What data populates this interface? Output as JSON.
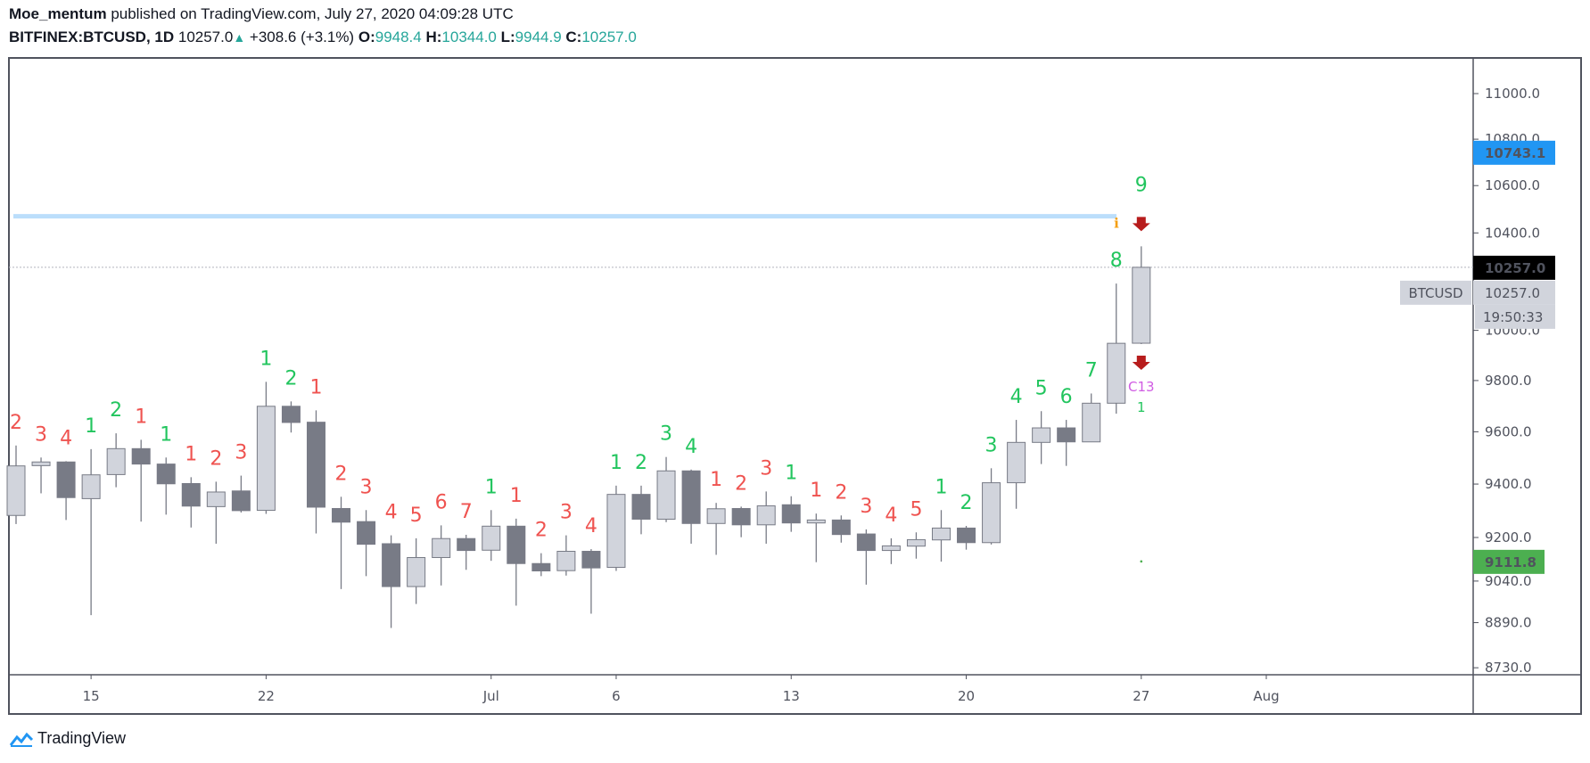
{
  "header": {
    "author": "Moe_mentum",
    "published": "published on TradingView.com, July 27, 2020 04:09:28 UTC",
    "symbol": "BITFINEX:BTCUSD, 1D",
    "last": "10257.0",
    "change": "+308.6 (+3.1%)",
    "o_label": "O:",
    "o_value": "9948.4",
    "h_label": "H:",
    "h_value": "10344.0",
    "l_label": "L:",
    "l_value": "9944.9",
    "c_label": "C:",
    "c_value": "10257.0"
  },
  "footer": {
    "logo_text": "TradingView"
  },
  "colors": {
    "up_fill": "#d1d4dc",
    "down_fill": "#787b86",
    "wick": "#787b86",
    "td_buy": "#22c55e",
    "td_sell": "#ef5350",
    "level_line": "#bbdefb",
    "accent_blue": "#2196f3",
    "green_badge": "#4caf50",
    "arrow": "#b71c1c",
    "countdown13": "#d05ce3",
    "info": "#f59e0b"
  },
  "chart_data": {
    "type": "candlestick",
    "title": "",
    "y_scale": "log",
    "ylim": [
      8680,
      11150
    ],
    "grid": false,
    "y_ticks": [
      "11000.0",
      "10800.0",
      "10600.0",
      "10400.0",
      "10000.0",
      "9800.0",
      "9600.0",
      "9400.0",
      "9200.0",
      "9040.0",
      "8890.0",
      "8730.0"
    ],
    "y_tick_values": [
      11000,
      10800,
      10600,
      10400,
      10000,
      9800,
      9600,
      9400,
      9200,
      9040,
      8890,
      8730
    ],
    "x_ticks": [
      {
        "label": "15",
        "date": "2020-06-15"
      },
      {
        "label": "22",
        "date": "2020-06-22"
      },
      {
        "label": "Jul",
        "date": "2020-07-01"
      },
      {
        "label": "6",
        "date": "2020-07-06"
      },
      {
        "label": "13",
        "date": "2020-07-13"
      },
      {
        "label": "20",
        "date": "2020-07-20"
      },
      {
        "label": "27",
        "date": "2020-07-27"
      },
      {
        "label": "Aug",
        "date": "2020-08-01"
      }
    ],
    "first_date": "2020-06-12",
    "candles": [
      {
        "o": 9282,
        "h": 9547,
        "l": 9250,
        "c": 9469,
        "td": "2",
        "td_side": "sell"
      },
      {
        "o": 9470,
        "h": 9501,
        "l": 9365,
        "c": 9484,
        "td": "3",
        "td_side": "sell"
      },
      {
        "o": 9484,
        "h": 9487,
        "l": 9265,
        "c": 9349,
        "td": "4",
        "td_side": "sell"
      },
      {
        "o": 9345,
        "h": 9533,
        "l": 8917,
        "c": 9435,
        "td": "1",
        "td_side": "buy"
      },
      {
        "o": 9436,
        "h": 9594,
        "l": 9388,
        "c": 9535,
        "td": "2",
        "td_side": "buy"
      },
      {
        "o": 9535,
        "h": 9569,
        "l": 9259,
        "c": 9476,
        "td": "1",
        "td_side": "sell"
      },
      {
        "o": 9476,
        "h": 9501,
        "l": 9285,
        "c": 9401,
        "td": "1",
        "td_side": "buy"
      },
      {
        "o": 9402,
        "h": 9426,
        "l": 9237,
        "c": 9317,
        "td": "1",
        "td_side": "sell"
      },
      {
        "o": 9315,
        "h": 9409,
        "l": 9177,
        "c": 9370,
        "td": "2",
        "td_side": "sell"
      },
      {
        "o": 9374,
        "h": 9432,
        "l": 9293,
        "c": 9300,
        "td": "3",
        "td_side": "sell"
      },
      {
        "o": 9301,
        "h": 9795,
        "l": 9288,
        "c": 9699,
        "td": "1",
        "td_side": "buy"
      },
      {
        "o": 9699,
        "h": 9718,
        "l": 9597,
        "c": 9636,
        "td": "2",
        "td_side": "buy"
      },
      {
        "o": 9637,
        "h": 9683,
        "l": 9215,
        "c": 9313,
        "td": "1",
        "td_side": "sell"
      },
      {
        "o": 9308,
        "h": 9352,
        "l": 9011,
        "c": 9257,
        "td": "2",
        "td_side": "sell"
      },
      {
        "o": 9259,
        "h": 9302,
        "l": 9058,
        "c": 9175,
        "td": "3",
        "td_side": "sell"
      },
      {
        "o": 9177,
        "h": 9208,
        "l": 8871,
        "c": 9020,
        "td": "4",
        "td_side": "sell"
      },
      {
        "o": 9020,
        "h": 9197,
        "l": 8957,
        "c": 9126,
        "td": "5",
        "td_side": "sell"
      },
      {
        "o": 9126,
        "h": 9245,
        "l": 9024,
        "c": 9196,
        "td": "6",
        "td_side": "sell"
      },
      {
        "o": 9196,
        "h": 9210,
        "l": 9081,
        "c": 9152,
        "td": "7",
        "td_side": "sell"
      },
      {
        "o": 9153,
        "h": 9302,
        "l": 9114,
        "c": 9242,
        "td": "1",
        "td_side": "buy"
      },
      {
        "o": 9242,
        "h": 9270,
        "l": 8951,
        "c": 9104,
        "td": "1",
        "td_side": "sell"
      },
      {
        "o": 9104,
        "h": 9142,
        "l": 9058,
        "c": 9077,
        "td": "2",
        "td_side": "sell"
      },
      {
        "o": 9078,
        "h": 9208,
        "l": 9060,
        "c": 9149,
        "td": "3",
        "td_side": "sell"
      },
      {
        "o": 9149,
        "h": 9157,
        "l": 8922,
        "c": 9088,
        "td": "4",
        "td_side": "sell"
      },
      {
        "o": 9090,
        "h": 9394,
        "l": 9077,
        "c": 9361,
        "td": "1",
        "td_side": "buy"
      },
      {
        "o": 9361,
        "h": 9394,
        "l": 9212,
        "c": 9268,
        "td": "2",
        "td_side": "buy"
      },
      {
        "o": 9268,
        "h": 9503,
        "l": 9257,
        "c": 9450,
        "td": "3",
        "td_side": "buy"
      },
      {
        "o": 9450,
        "h": 9455,
        "l": 9177,
        "c": 9252,
        "td": "4",
        "td_side": "buy"
      },
      {
        "o": 9252,
        "h": 9329,
        "l": 9136,
        "c": 9307,
        "td": "1",
        "td_side": "sell"
      },
      {
        "o": 9308,
        "h": 9315,
        "l": 9201,
        "c": 9247,
        "td": "2",
        "td_side": "sell"
      },
      {
        "o": 9247,
        "h": 9372,
        "l": 9177,
        "c": 9318,
        "td": "3",
        "td_side": "sell"
      },
      {
        "o": 9322,
        "h": 9354,
        "l": 9221,
        "c": 9254,
        "td": "1",
        "td_side": "buy"
      },
      {
        "o": 9254,
        "h": 9289,
        "l": 9109,
        "c": 9265,
        "td": "1",
        "td_side": "sell"
      },
      {
        "o": 9265,
        "h": 9282,
        "l": 9181,
        "c": 9211,
        "td": "2",
        "td_side": "sell"
      },
      {
        "o": 9213,
        "h": 9230,
        "l": 9027,
        "c": 9152,
        "td": "3",
        "td_side": "sell"
      },
      {
        "o": 9152,
        "h": 9197,
        "l": 9102,
        "c": 9169,
        "td": "4",
        "td_side": "sell"
      },
      {
        "o": 9168,
        "h": 9219,
        "l": 9122,
        "c": 9192,
        "td": "5",
        "td_side": "sell"
      },
      {
        "o": 9191,
        "h": 9302,
        "l": 9111,
        "c": 9235,
        "td": "1",
        "td_side": "buy"
      },
      {
        "o": 9235,
        "h": 9243,
        "l": 9155,
        "c": 9181,
        "td": "2",
        "td_side": "buy"
      },
      {
        "o": 9181,
        "h": 9460,
        "l": 9174,
        "c": 9405,
        "td": "3",
        "td_side": "buy"
      },
      {
        "o": 9405,
        "h": 9646,
        "l": 9307,
        "c": 9559,
        "td": "4",
        "td_side": "buy"
      },
      {
        "o": 9559,
        "h": 9680,
        "l": 9476,
        "c": 9615,
        "td": "5",
        "td_side": "buy"
      },
      {
        "o": 9615,
        "h": 9646,
        "l": 9469,
        "c": 9561,
        "td": "6",
        "td_side": "buy"
      },
      {
        "o": 9561,
        "h": 9749,
        "l": 9560,
        "c": 9711,
        "td": "7",
        "td_side": "buy"
      },
      {
        "o": 9711,
        "h": 10190,
        "l": 9670,
        "c": 9948,
        "td": "8",
        "td_side": "buy"
      },
      {
        "o": 9948.4,
        "h": 10344,
        "l": 9944.9,
        "c": 10257,
        "td": "9",
        "td_side": "buy"
      }
    ],
    "last_candle_marks": {
      "countdown": "C13",
      "below_count": "1"
    },
    "level_line_price": 10470,
    "ma_dot_price": 9111.8,
    "price_labels": [
      {
        "text": "10743.1",
        "value": 10743.1,
        "kind": "blue"
      },
      {
        "text": "10257.0",
        "value": 10257.0,
        "kind": "last"
      },
      {
        "text": "9111.8",
        "value": 9111.8,
        "kind": "green"
      }
    ],
    "symbol_label": "BTCUSD",
    "symbol_price": "10257.0",
    "countdown_timer": "19:50:33"
  }
}
